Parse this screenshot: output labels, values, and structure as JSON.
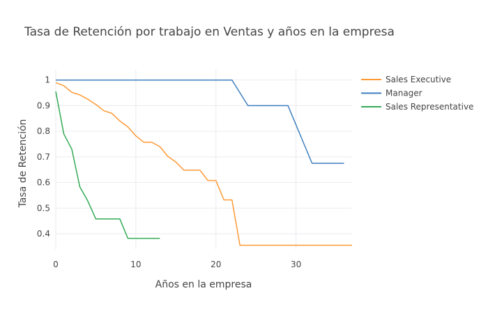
{
  "chart_data": {
    "type": "line",
    "title": "Tasa de Retención por trabajo en Ventas y años en la empresa",
    "xlabel": "Años en la empresa",
    "ylabel": "Tasa de Retención",
    "xlim": [
      0,
      37
    ],
    "ylim": [
      0.34,
      1.04
    ],
    "x_ticks": [
      0,
      10,
      20,
      30
    ],
    "y_ticks": [
      0.4,
      0.5,
      0.6,
      0.7,
      0.8,
      0.9,
      1
    ],
    "grid": true,
    "legend_position": "top-right",
    "series": [
      {
        "name": "Sales Executive",
        "color": "#ff9933",
        "x": [
          0,
          1,
          2,
          3,
          4,
          5,
          6,
          7,
          8,
          9,
          10,
          11,
          12,
          13,
          14,
          15,
          16,
          17,
          18,
          19,
          20,
          21,
          22,
          23,
          24,
          25,
          26,
          27,
          28,
          29,
          30,
          31,
          32,
          33,
          34,
          35,
          36,
          37
        ],
        "values": [
          0.99,
          0.978,
          0.952,
          0.942,
          0.925,
          0.905,
          0.88,
          0.87,
          0.84,
          0.817,
          0.782,
          0.757,
          0.757,
          0.74,
          0.702,
          0.68,
          0.648,
          0.648,
          0.648,
          0.608,
          0.608,
          0.532,
          0.532,
          0.355,
          0.355,
          0.355,
          0.355,
          0.355,
          0.355,
          0.355,
          0.355,
          0.355,
          0.355,
          0.355,
          0.355,
          0.355,
          0.355,
          0.355
        ]
      },
      {
        "name": "Manager",
        "color": "#3f7fbf",
        "x": [
          0,
          1,
          2,
          3,
          4,
          5,
          6,
          7,
          8,
          9,
          10,
          11,
          12,
          13,
          14,
          15,
          16,
          17,
          18,
          19,
          20,
          21,
          22,
          23,
          24,
          25,
          26,
          27,
          28,
          29,
          30,
          31,
          32,
          33,
          34,
          35,
          36
        ],
        "values": [
          1,
          1,
          1,
          1,
          1,
          1,
          1,
          1,
          1,
          1,
          1,
          1,
          1,
          1,
          1,
          1,
          1,
          1,
          1,
          1,
          1,
          1,
          1,
          0.95,
          0.9,
          0.9,
          0.9,
          0.9,
          0.9,
          0.9,
          0.825,
          0.75,
          0.675,
          0.675,
          0.675,
          0.675,
          0.675
        ]
      },
      {
        "name": "Sales Representative",
        "color": "#33aa55",
        "x": [
          0,
          1,
          2,
          3,
          4,
          5,
          6,
          7,
          8,
          9,
          10,
          11,
          12,
          13
        ],
        "values": [
          0.955,
          0.79,
          0.73,
          0.583,
          0.528,
          0.458,
          0.458,
          0.458,
          0.458,
          0.382,
          0.382,
          0.382,
          0.382,
          0.382
        ]
      }
    ]
  }
}
